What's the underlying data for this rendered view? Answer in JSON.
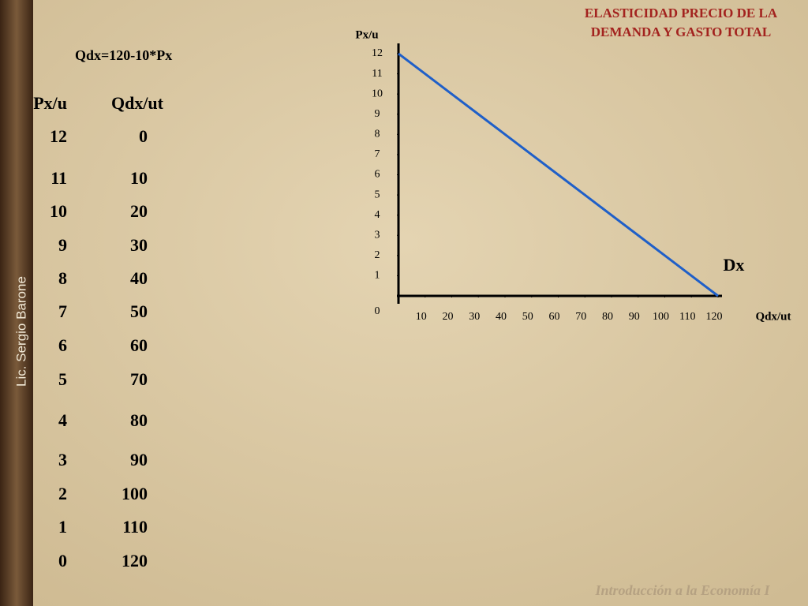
{
  "sidebar": "Lic. Sergio Barone",
  "formula": "Qdx=120-10*Px",
  "table": {
    "header": [
      "Px/u",
      "Qdx/ut"
    ],
    "rows": [
      [
        12,
        0
      ],
      [
        11,
        10
      ],
      [
        10,
        20
      ],
      [
        9,
        30
      ],
      [
        8,
        40
      ],
      [
        7,
        50
      ],
      [
        6,
        60
      ],
      [
        5,
        70
      ],
      [
        4,
        80
      ],
      [
        3,
        90
      ],
      [
        2,
        100
      ],
      [
        1,
        110
      ],
      [
        0,
        120
      ]
    ]
  },
  "chart_data": {
    "type": "line",
    "title": [
      "ELASTICIDAD PRECIO DE LA",
      "DEMANDA Y GASTO TOTAL"
    ],
    "y_label": "Px/u",
    "x_label": "Qdx/ut",
    "annotation": "Dx",
    "x": [
      0,
      10,
      20,
      30,
      40,
      50,
      60,
      70,
      80,
      90,
      100,
      110,
      120
    ],
    "series": [
      {
        "name": "Dx",
        "color": "#1f5fc8",
        "values": [
          12,
          11,
          10,
          9,
          8,
          7,
          6,
          5,
          4,
          3,
          2,
          1,
          0
        ]
      }
    ],
    "xlim": [
      0,
      120
    ],
    "ylim": [
      0,
      12
    ],
    "xticks": [
      10,
      20,
      30,
      40,
      50,
      60,
      70,
      80,
      90,
      100,
      110,
      120
    ],
    "yticks": [
      0,
      1,
      2,
      3,
      4,
      5,
      6,
      7,
      8,
      9,
      10,
      11,
      12
    ]
  },
  "footer": "Introducción a la Economía I"
}
